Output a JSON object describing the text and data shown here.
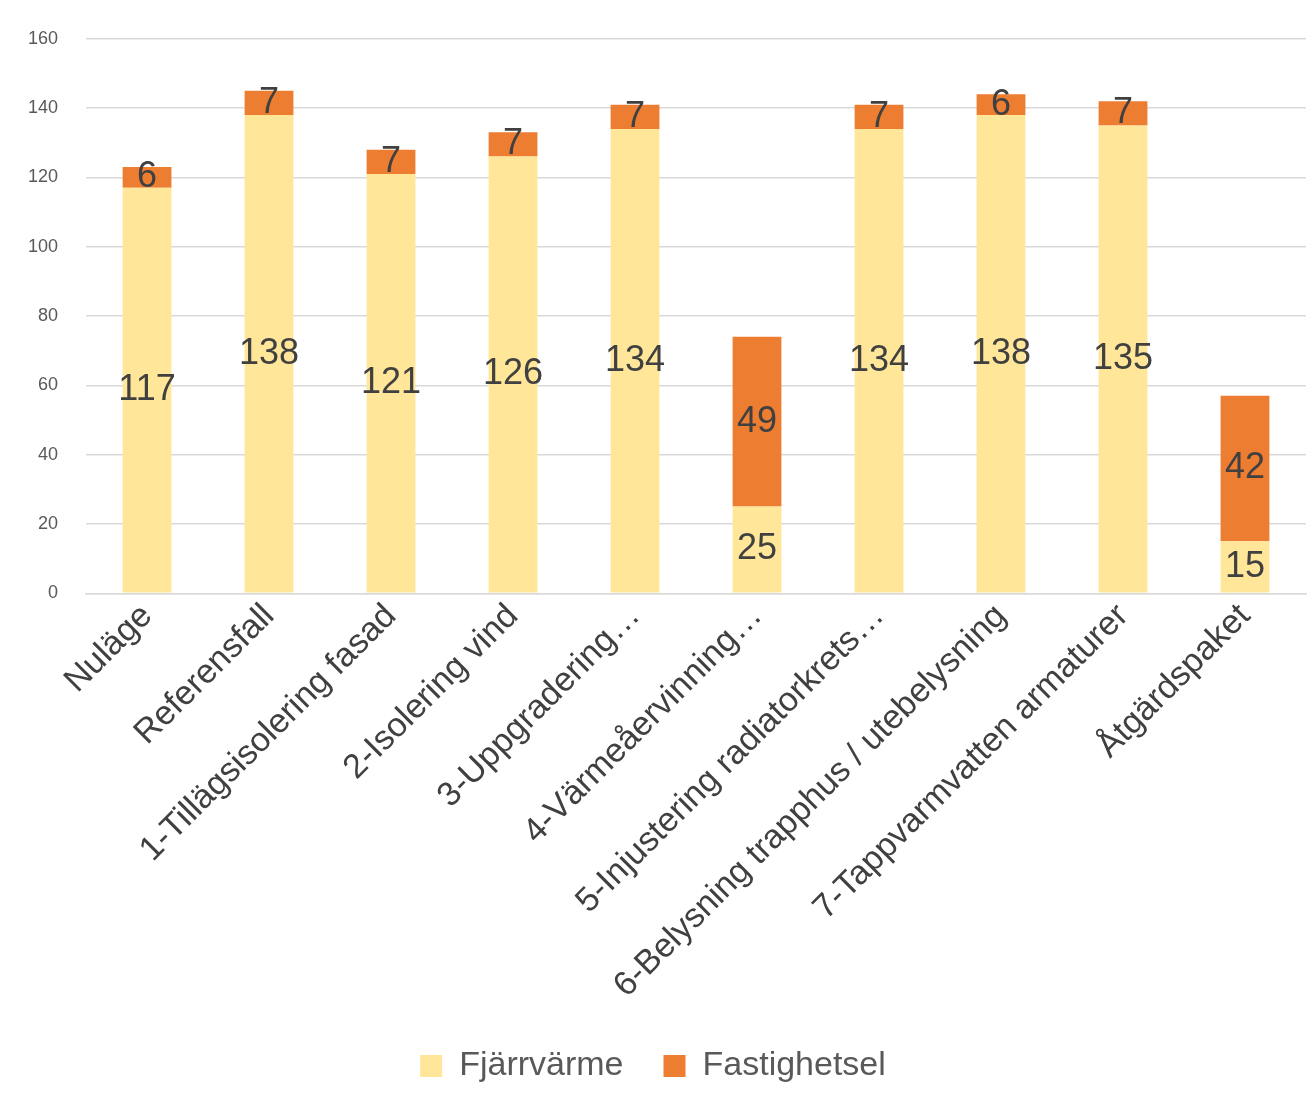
{
  "chart_data": {
    "type": "bar",
    "stacked": true,
    "categories": [
      "Nuläge",
      "Referensfall",
      "1-Tillägsisolering fasad",
      "2-Isolering vind",
      "3-Uppgradering…",
      "4-Värmeåervinning…",
      "5-Injustering radiatorkrets…",
      "6-Belysning trapphus / utebelysning",
      "7-Tappvarmvatten armaturer",
      "Åtgärdspaket"
    ],
    "series": [
      {
        "name": "Fjärrvärme",
        "color": "#ffe699",
        "values": [
          117,
          138,
          121,
          126,
          134,
          25,
          134,
          138,
          135,
          15
        ]
      },
      {
        "name": "Fastighetsel",
        "color": "#ed7d31",
        "values": [
          6,
          7,
          7,
          7,
          7,
          49,
          7,
          6,
          7,
          42
        ]
      }
    ],
    "ylim": [
      0,
      160
    ],
    "yticks": [
      0,
      20,
      40,
      60,
      80,
      100,
      120,
      140,
      160
    ],
    "grid": "y",
    "legend": "bottom",
    "data_labels": true
  }
}
